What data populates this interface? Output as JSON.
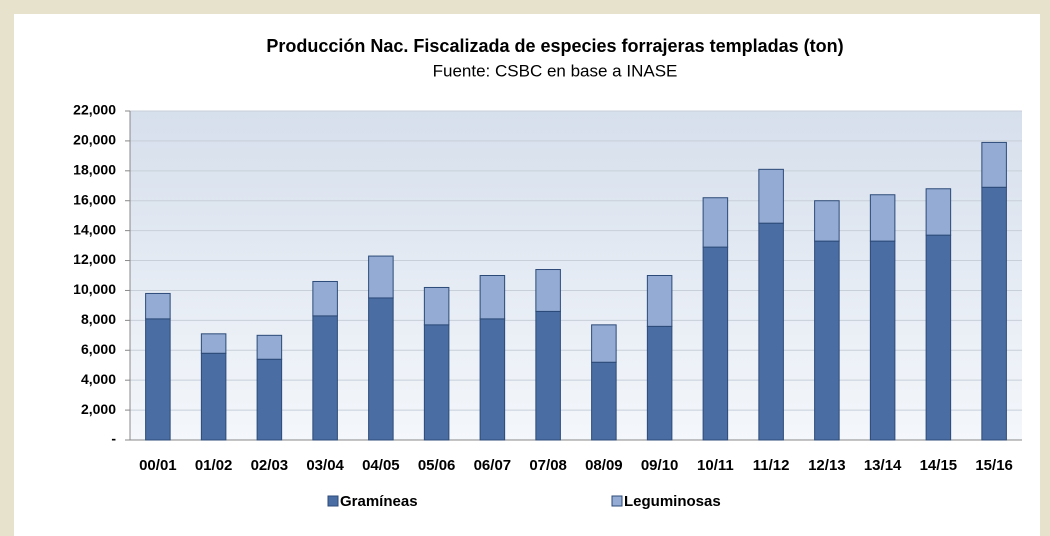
{
  "chart_data": {
    "type": "stacked_bar",
    "title": "Producción Nac. Fiscalizada de especies forrajeras templadas (ton)",
    "subtitle": "Fuente: CSBC en base a INASE",
    "categories": [
      "00/01",
      "01/02",
      "02/03",
      "03/04",
      "04/05",
      "05/06",
      "06/07",
      "07/08",
      "08/09",
      "09/10",
      "10/11",
      "11/12",
      "12/13",
      "13/14",
      "14/15",
      "15/16"
    ],
    "series": [
      {
        "name": "Gramíneas",
        "color": "#4a6ea3",
        "values": [
          8100,
          5800,
          5400,
          8300,
          9500,
          7700,
          8100,
          8600,
          5200,
          7600,
          12900,
          14500,
          13300,
          13300,
          13700,
          16900
        ]
      },
      {
        "name": "Leguminosas",
        "color": "#94acd4",
        "values": [
          1700,
          1300,
          1600,
          2300,
          2800,
          2500,
          2900,
          2800,
          2500,
          3400,
          3300,
          3600,
          2700,
          3100,
          3100,
          3000
        ]
      }
    ],
    "ylim": [
      0,
      22000
    ],
    "yticks": [
      {
        "value": 0,
        "label": "-"
      },
      {
        "value": 2000,
        "label": "2,000"
      },
      {
        "value": 4000,
        "label": "4,000"
      },
      {
        "value": 6000,
        "label": "6,000"
      },
      {
        "value": 8000,
        "label": "8,000"
      },
      {
        "value": 10000,
        "label": "10,000"
      },
      {
        "value": 12000,
        "label": "12,000"
      },
      {
        "value": 14000,
        "label": "14,000"
      },
      {
        "value": 16000,
        "label": "16,000"
      },
      {
        "value": 18000,
        "label": "18,000"
      },
      {
        "value": 20000,
        "label": "20,000"
      },
      {
        "value": 22000,
        "label": "22,000"
      }
    ],
    "grid": true,
    "legend": "bottom"
  }
}
